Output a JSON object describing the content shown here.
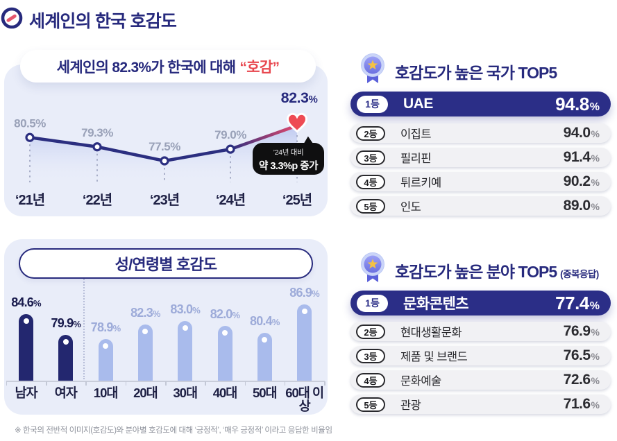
{
  "page": {
    "title": "세계인의 한국 호감도",
    "footnote": "※ 한국의 전반적 이미지(호감도)와 분야별 호감도에 대해  ‘긍정적’, ‘매우 긍정적’ 이라고 응답한 비율임"
  },
  "icons": {
    "logo": "swirl-d-emblem",
    "medal": "medal-rosette-star-badge",
    "heart": "red-heart-marker"
  },
  "colors": {
    "navy": "#2b2e80",
    "navy_pill": "#2b2e87",
    "dark_bar": "#23276f",
    "light_bar": "#a9bbec",
    "accent_red": "#e8474f",
    "rise_pink": "#e8486b",
    "panel_bg": "#e9edf9",
    "row_bg": "#f1f1f4",
    "bubble_bg": "#0f0f10",
    "gray_label": "#99a1b8",
    "age_label": "#9dabd9"
  },
  "trend_panel": {
    "headline_prefix": "세계인의 82.3%가 한국에 대해",
    "headline_accent": "“호감”",
    "callout_line1": "’24년 대비",
    "callout_line2": "약 3.3%p 증가"
  },
  "chart_data": [
    {
      "id": "korea-favorability-trend",
      "type": "line",
      "title": "세계인의 82.3%가 한국에 대해 “호감”",
      "categories": [
        "‘21년",
        "‘22년",
        "‘23년",
        "‘24년",
        "‘25년"
      ],
      "values": [
        80.5,
        79.3,
        77.5,
        79.0,
        82.3
      ],
      "labels": [
        "80.5%",
        "79.3%",
        "77.5%",
        "79.0%",
        "82.3%"
      ],
      "highlight_index": 4,
      "annotation": "’24년 대비 약 3.3%p 증가",
      "ylim": [
        75,
        85
      ],
      "grid": false,
      "legend": "none"
    },
    {
      "id": "favorability-by-gender-age",
      "type": "bar",
      "title": "성/연령별 호감도",
      "categories": [
        "남자",
        "여자",
        "10대",
        "20대",
        "30대",
        "40대",
        "50대",
        "60대 이상"
      ],
      "values": [
        84.6,
        79.9,
        78.9,
        82.3,
        83.0,
        82.0,
        80.4,
        86.9
      ],
      "labels": [
        "84.6%",
        "79.9%",
        "78.9%",
        "82.3%",
        "83.0%",
        "82.0%",
        "80.4%",
        "86.9%"
      ],
      "group_split_after_index": 1,
      "ylim": [
        69.3,
        90
      ],
      "grid": false,
      "legend": "none"
    }
  ],
  "top_countries": {
    "title": "호감도가 높은 국가 TOP5",
    "rows": [
      {
        "rank": "1등",
        "name": "UAE",
        "value": "94.8",
        "unit": "%"
      },
      {
        "rank": "2등",
        "name": "이집트",
        "value": "94.0",
        "unit": "%"
      },
      {
        "rank": "3등",
        "name": "필리핀",
        "value": "91.4",
        "unit": "%"
      },
      {
        "rank": "4등",
        "name": "튀르키예",
        "value": "90.2",
        "unit": "%"
      },
      {
        "rank": "5등",
        "name": "인도",
        "value": "89.0",
        "unit": "%"
      }
    ]
  },
  "top_fields": {
    "title": "호감도가 높은 분야 TOP5",
    "title_suffix": "(중복응답)",
    "rows": [
      {
        "rank": "1등",
        "name": "문화콘텐츠",
        "value": "77.4",
        "unit": "%"
      },
      {
        "rank": "2등",
        "name": "현대생활문화",
        "value": "76.9",
        "unit": "%"
      },
      {
        "rank": "3등",
        "name": "제품 및 브랜드",
        "value": "76.5",
        "unit": "%"
      },
      {
        "rank": "4등",
        "name": "문화예술",
        "value": "72.6",
        "unit": "%"
      },
      {
        "rank": "5등",
        "name": "관광",
        "value": "71.6",
        "unit": "%"
      }
    ]
  }
}
